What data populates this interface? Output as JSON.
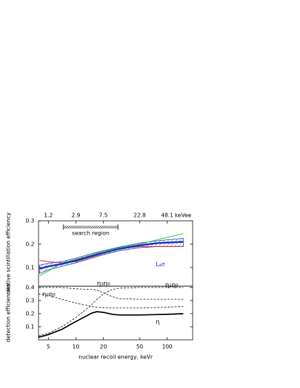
{
  "chart_data": [
    {
      "type": "line",
      "ylabel": "relative scintillation efficiency",
      "xlog": true,
      "xlim": [
        3.9,
        190
      ],
      "ylim": [
        0.02,
        0.3
      ],
      "yticks": [
        0.1,
        0.2,
        0.3
      ],
      "x2ticks": [
        {
          "value": 5,
          "label": "1.2"
        },
        {
          "value": 10,
          "label": "2.9"
        },
        {
          "value": 20,
          "label": "7.5"
        },
        {
          "value": 50,
          "label": "22.8"
        },
        {
          "value": 100,
          "label": "48.1"
        }
      ],
      "x2label": "keVee",
      "x": [
        4,
        5,
        7,
        10,
        15,
        20,
        30,
        50,
        80,
        150
      ],
      "band": {
        "color": "#1a2fc0",
        "lower": [
          0.075,
          0.09,
          0.105,
          0.12,
          0.14,
          0.155,
          0.172,
          0.185,
          0.19,
          0.19
        ],
        "upper": [
          0.11,
          0.118,
          0.125,
          0.14,
          0.16,
          0.172,
          0.188,
          0.205,
          0.215,
          0.225
        ]
      },
      "series": [
        {
          "color": "#e02020",
          "width": 1,
          "dash": false,
          "values": [
            0.13,
            0.125,
            0.12,
            0.125,
            0.145,
            0.16,
            0.18,
            0.19,
            0.19,
            0.19
          ]
        },
        {
          "color": "#20d020",
          "width": 1,
          "dash": false,
          "values": [
            0.065,
            0.085,
            0.12,
            0.135,
            0.155,
            0.17,
            0.185,
            0.2,
            0.22,
            0.245
          ]
        },
        {
          "color": "#1a2fc0",
          "width": 2.5,
          "dash": false,
          "values": [
            0.095,
            0.105,
            0.115,
            0.13,
            0.15,
            0.163,
            0.18,
            0.195,
            0.205,
            0.21
          ]
        }
      ],
      "search_region": {
        "text": "search region",
        "x": [
          7.3,
          29
        ],
        "y": 0.273
      },
      "labels": [
        {
          "parts": [
            "L",
            "eff"
          ],
          "x": 75,
          "y": 0.115,
          "color": "#1a2fc0"
        }
      ]
    },
    {
      "type": "line",
      "ylabel": "detection efficiencies",
      "xlabel": "nuclear recoil energy, keVr",
      "xlog": true,
      "xlim": [
        3.9,
        190
      ],
      "ylim": [
        0,
        0.41
      ],
      "yticks": [
        0.1,
        0.2,
        0.3,
        0.4
      ],
      "xticks": [
        5,
        10,
        20,
        50,
        100
      ],
      "x": [
        3.9,
        5,
        7,
        10,
        15,
        17,
        20,
        25,
        30,
        50,
        100,
        150
      ],
      "series": [
        {
          "color": "#000000",
          "width": 1.8,
          "dash": false,
          "values": [
            0.02,
            0.04,
            0.08,
            0.14,
            0.205,
            0.215,
            0.21,
            0.195,
            0.19,
            0.19,
            0.195,
            0.2
          ]
        },
        {
          "color": "#000000",
          "width": 0.8,
          "dash": true,
          "values": [
            0.03,
            0.05,
            0.1,
            0.17,
            0.27,
            0.31,
            0.35,
            0.385,
            0.395,
            0.4,
            0.4,
            0.4
          ]
        },
        {
          "color": "#000000",
          "width": 0.8,
          "dash": true,
          "values": [
            0.4,
            0.4,
            0.4,
            0.39,
            0.385,
            0.38,
            0.36,
            0.33,
            0.315,
            0.31,
            0.31,
            0.31
          ]
        },
        {
          "color": "#000000",
          "width": 0.8,
          "dash": true,
          "values": [
            0.35,
            0.34,
            0.31,
            0.28,
            0.255,
            0.248,
            0.245,
            0.243,
            0.243,
            0.243,
            0.25,
            0.255
          ]
        }
      ],
      "labels": [
        {
          "parts": [
            "η"
          ],
          "x": 75,
          "y": 0.14,
          "color": "#000000"
        },
        {
          "parts": [
            "η",
            "1",
            "η",
            "0"
          ],
          "x": 95,
          "y": 0.42,
          "color": "#000000"
        },
        {
          "parts": [
            "η",
            "3",
            "η",
            "0"
          ],
          "x": 17,
          "y": 0.43,
          "color": "#000000"
        },
        {
          "parts": [
            "η",
            "2",
            "η",
            "0"
          ],
          "x": 4.3,
          "y": 0.35,
          "color": "#000000"
        }
      ]
    }
  ]
}
